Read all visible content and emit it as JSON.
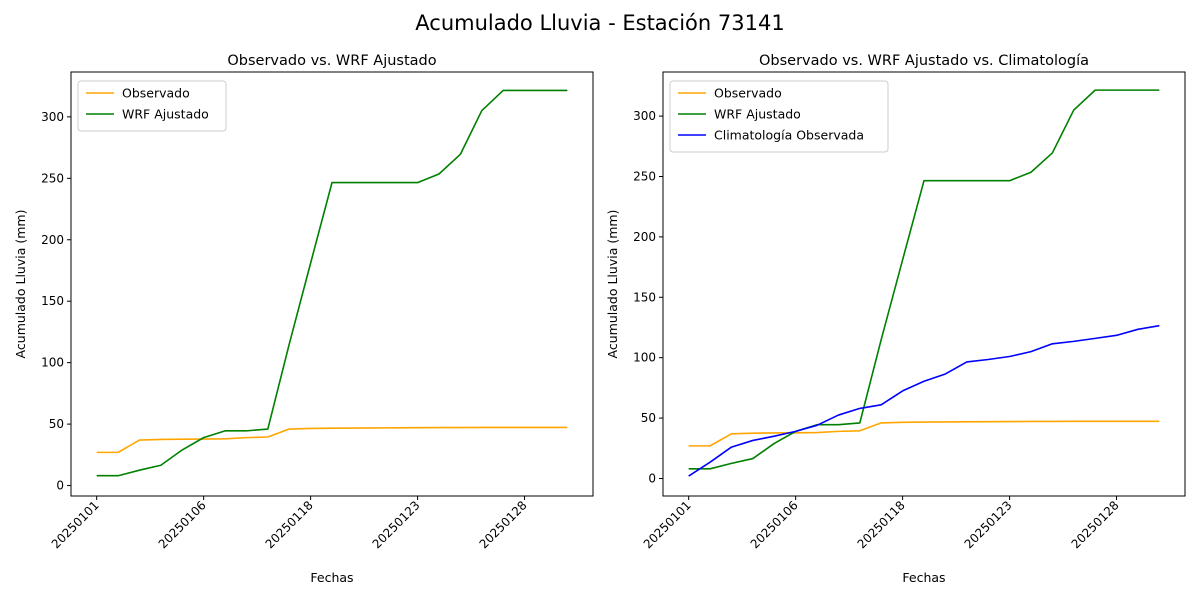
{
  "figure": {
    "suptitle": "Acumulado Lluvia - Estación 73141"
  },
  "colors": {
    "observado": "#FFA500",
    "wrf": "#008000",
    "climatologia": "#0000FF"
  },
  "chart_data": [
    {
      "type": "line",
      "title": "Observado vs. WRF Ajustado",
      "xlabel": "Fechas",
      "ylabel": "Acumulado Lluvia (mm)",
      "legend": "top-left",
      "grid": false,
      "x_ticks": [
        "20250101",
        "20250106",
        "20250118",
        "20250123",
        "20250128"
      ],
      "y_ticks": [
        0,
        50,
        100,
        150,
        200,
        250,
        300
      ],
      "xlim": [
        -1.2,
        23.2
      ],
      "ylim": [
        -8.5,
        336.5
      ],
      "series": [
        {
          "name": "Observado",
          "color_key": "observado",
          "x": [
            0,
            1,
            2,
            3,
            4,
            5,
            6,
            7,
            8,
            9,
            10,
            11,
            12,
            13,
            14,
            15,
            16,
            17,
            18,
            19,
            20,
            21,
            22
          ],
          "y": [
            27,
            27,
            37,
            37.5,
            37.7,
            37.8,
            38,
            39,
            39.5,
            46,
            46.5,
            46.7,
            46.8,
            46.9,
            47,
            47.1,
            47.2,
            47.2,
            47.3,
            47.3,
            47.3,
            47.3,
            47.3
          ]
        },
        {
          "name": "WRF Ajustado",
          "color_key": "wrf",
          "x": [
            0,
            1,
            2,
            3,
            4,
            5,
            6,
            7,
            8,
            9,
            10,
            11,
            12,
            13,
            14,
            15,
            16,
            17,
            18,
            19,
            20,
            21,
            22
          ],
          "y": [
            8,
            8,
            12.5,
            16.5,
            29,
            39,
            44.5,
            44.5,
            46,
            115,
            181,
            246.5,
            246.5,
            246.5,
            246.5,
            246.5,
            253.5,
            269.5,
            305,
            321.5,
            321.5,
            321.5,
            321.5
          ]
        }
      ]
    },
    {
      "type": "line",
      "title": "Observado vs. WRF Ajustado vs. Climatología",
      "xlabel": "Fechas",
      "ylabel": "Acumulado Lluvia (mm)",
      "legend": "top-left",
      "grid": false,
      "x_ticks": [
        "20250101",
        "20250106",
        "20250118",
        "20250123",
        "20250128"
      ],
      "y_ticks": [
        0,
        50,
        100,
        150,
        200,
        250,
        300
      ],
      "xlim": [
        -1.2,
        23.2
      ],
      "ylim": [
        -14.5,
        336.5
      ],
      "series": [
        {
          "name": "Observado",
          "color_key": "observado",
          "x": [
            0,
            1,
            2,
            3,
            4,
            5,
            6,
            7,
            8,
            9,
            10,
            11,
            12,
            13,
            14,
            15,
            16,
            17,
            18,
            19,
            20,
            21,
            22
          ],
          "y": [
            27,
            27,
            37,
            37.5,
            37.7,
            37.8,
            38,
            39,
            39.5,
            46,
            46.5,
            46.7,
            46.8,
            46.9,
            47,
            47.1,
            47.2,
            47.2,
            47.3,
            47.3,
            47.3,
            47.3,
            47.3
          ]
        },
        {
          "name": "WRF Ajustado",
          "color_key": "wrf",
          "x": [
            0,
            1,
            2,
            3,
            4,
            5,
            6,
            7,
            8,
            9,
            10,
            11,
            12,
            13,
            14,
            15,
            16,
            17,
            18,
            19,
            20,
            21,
            22
          ],
          "y": [
            8,
            8,
            12.5,
            16.5,
            29,
            39,
            44.5,
            44.5,
            46,
            115,
            181,
            246.5,
            246.5,
            246.5,
            246.5,
            246.5,
            253.5,
            269.5,
            305,
            321.5,
            321.5,
            321.5,
            321.5
          ]
        },
        {
          "name": "Climatología Observada",
          "color_key": "climatologia",
          "x": [
            0,
            1,
            2,
            3,
            4,
            5,
            6,
            7,
            8,
            9,
            10,
            11,
            12,
            13,
            14,
            15,
            16,
            17,
            18,
            19,
            20,
            21,
            22
          ],
          "y": [
            2,
            13.5,
            26,
            31.5,
            35,
            39,
            44,
            52.5,
            58,
            61,
            72.5,
            80.5,
            86.5,
            96.5,
            98.5,
            101,
            105,
            111.5,
            113.5,
            116,
            118.5,
            123.5,
            126.5
          ]
        }
      ]
    }
  ]
}
